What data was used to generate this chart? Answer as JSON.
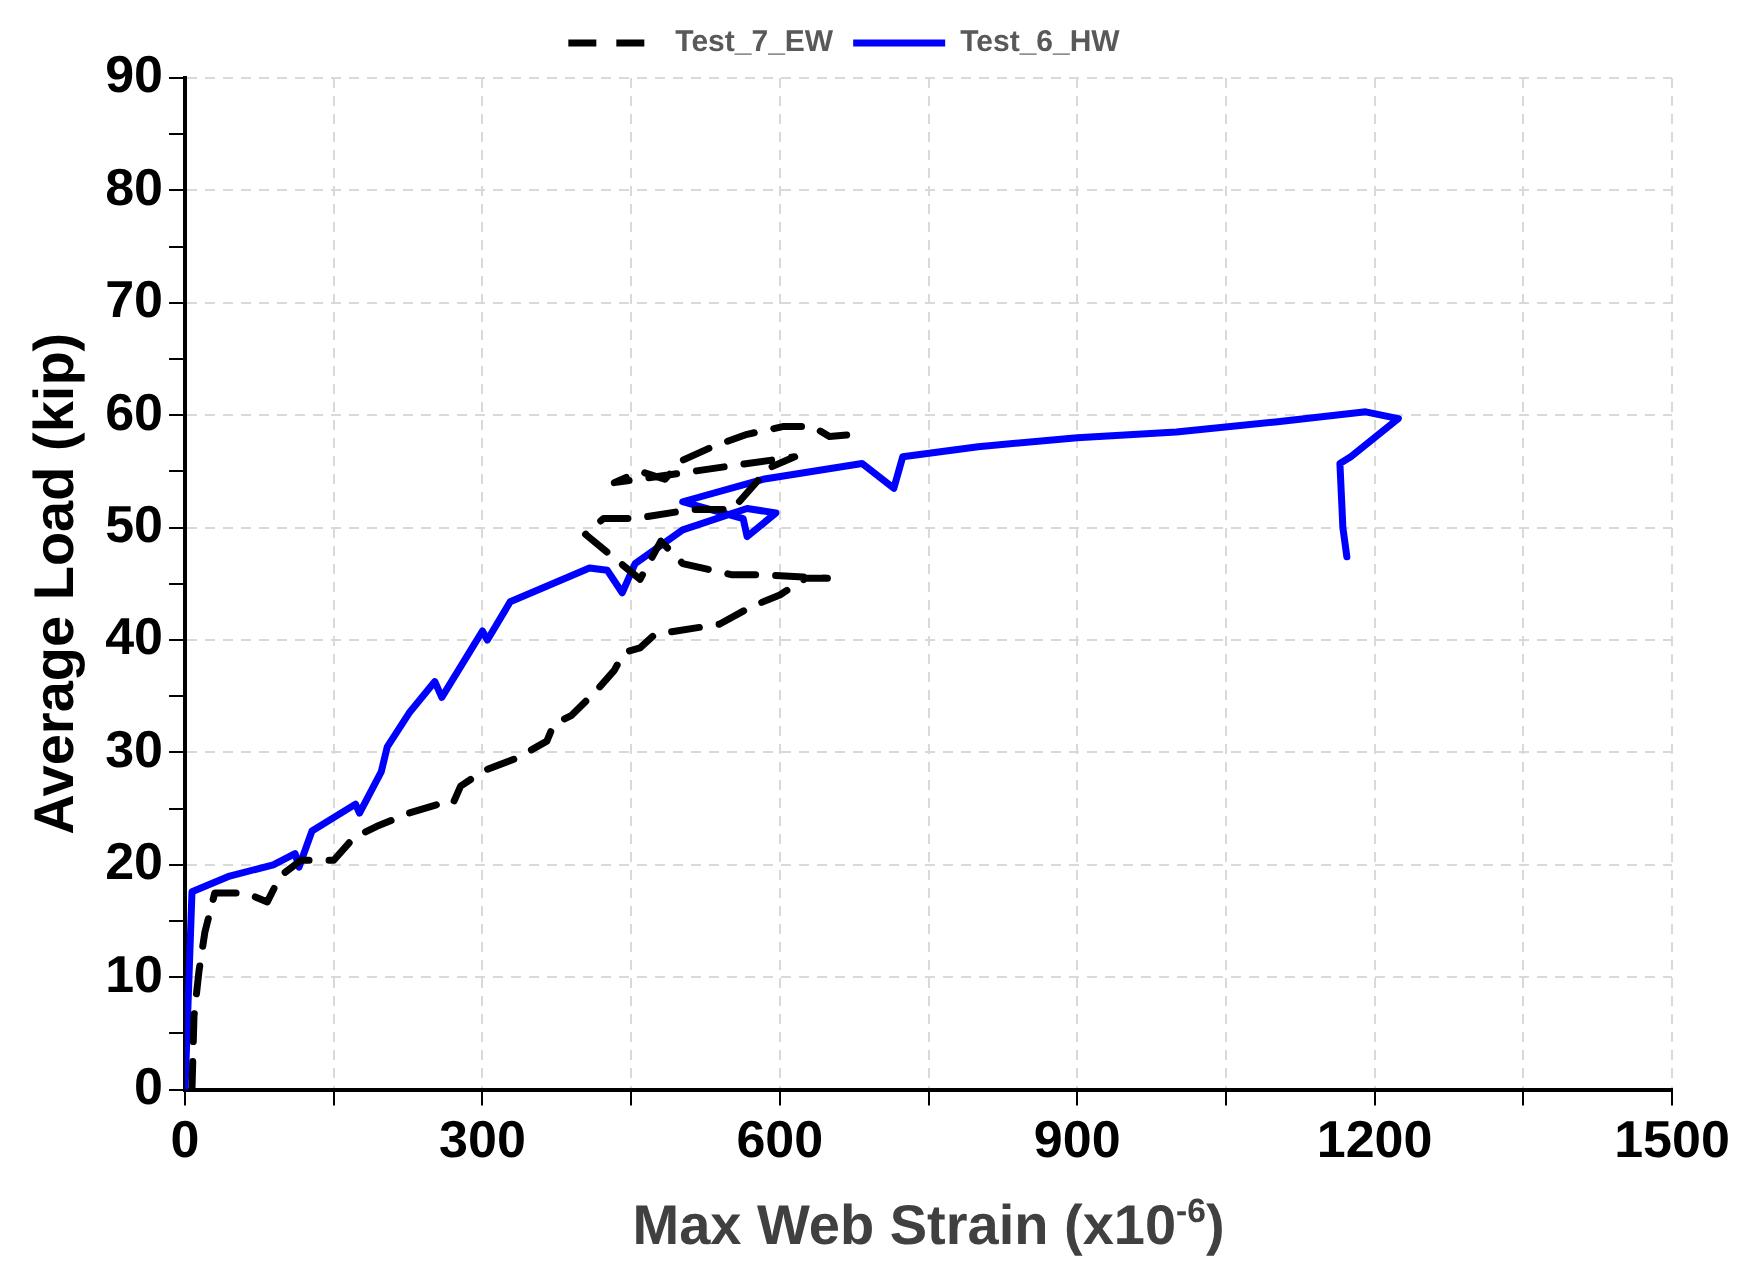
{
  "chart_data": {
    "type": "line",
    "xlabel": "Max Web Strain (x10$^{-6}$)",
    "ylabel": "Average Load (kip)",
    "xlim": [
      0,
      1500
    ],
    "xticks": [
      0,
      {
        "value": 150,
        "label": null
      },
      300,
      {
        "value": 450,
        "label": null
      },
      600,
      {
        "value": 750,
        "label": null
      },
      900,
      {
        "value": 1050,
        "label": null
      },
      1200,
      {
        "value": 1350,
        "label": null
      },
      1500
    ],
    "ylim": [
      0,
      90
    ],
    "yticks": [
      0,
      {
        "value": 5,
        "label": null
      },
      10,
      {
        "value": 15,
        "label": null
      },
      20,
      {
        "value": 25,
        "label": null
      },
      30,
      {
        "value": 35,
        "label": null
      },
      40,
      {
        "value": 45,
        "label": null
      },
      50,
      {
        "value": 55,
        "label": null
      },
      60,
      {
        "value": 65,
        "label": null
      },
      70,
      {
        "value": 75,
        "label": null
      },
      80,
      {
        "value": 85,
        "label": null
      },
      90
    ],
    "grid": true,
    "legend": "top",
    "marker": "none",
    "series": [
      {
        "name": "Test_7_EW",
        "color": "#000000",
        "line_style": "dashed",
        "x": [
          7,
          9,
          14,
          20,
          30,
          61,
          83,
          96,
          117,
          150,
          170,
          193,
          226,
          256,
          270,
          278,
          302,
          335,
          365,
          372,
          390,
          415,
          433,
          443,
          459,
          474,
          539,
          572,
          600,
          626,
          648,
          583,
          552,
          502,
          480,
          459,
          404,
          422,
          454,
          496,
          509,
          552,
          589,
          615,
          433,
          459,
          484,
          502,
          535,
          567,
          604,
          633,
          650,
          676
        ],
        "values": [
          0,
          6.5,
          10.5,
          14,
          17.5,
          17.5,
          16.7,
          19,
          20.4,
          20.4,
          22.4,
          23.4,
          24.6,
          25.4,
          25.4,
          27,
          28.4,
          29.5,
          31,
          32.5,
          33.3,
          35.5,
          37.3,
          38.9,
          39.3,
          40.5,
          41.4,
          43,
          44,
          45.5,
          45.5,
          45.8,
          45.8,
          46.8,
          48.8,
          45.4,
          49.4,
          50.8,
          50.8,
          51.4,
          51.6,
          51.6,
          55.3,
          56.3,
          54,
          55,
          54.3,
          56,
          57.3,
          58.3,
          59,
          59,
          58.1,
          58.3
        ]
      },
      {
        "name": "Test_6_HW",
        "color": "#0000ff",
        "line_style": "solid",
        "x": [
          0,
          7,
          45,
          89,
          111,
          115,
          128,
          172,
          176,
          198,
          204,
          226,
          252,
          259,
          291,
          300,
          305,
          328,
          408,
          426,
          441,
          454,
          502,
          567,
          596,
          567,
          563,
          502,
          583,
          683,
          715,
          724,
          800,
          900,
          1000,
          1100,
          1191,
          1224,
          1176,
          1165,
          1168,
          1172
        ],
        "values": [
          0,
          17.6,
          19,
          20,
          21,
          19.8,
          23,
          25.4,
          24.6,
          28.3,
          30.5,
          33.5,
          36.3,
          34.9,
          39.5,
          40.8,
          40,
          43.4,
          46.4,
          46.2,
          44.2,
          46.8,
          49.8,
          51.7,
          51.3,
          49.2,
          50.8,
          52.3,
          54.3,
          55.7,
          53.5,
          56.3,
          57.2,
          58,
          58.5,
          59.4,
          60.3,
          59.7,
          56.3,
          55.7,
          50,
          47.4
        ]
      }
    ]
  }
}
